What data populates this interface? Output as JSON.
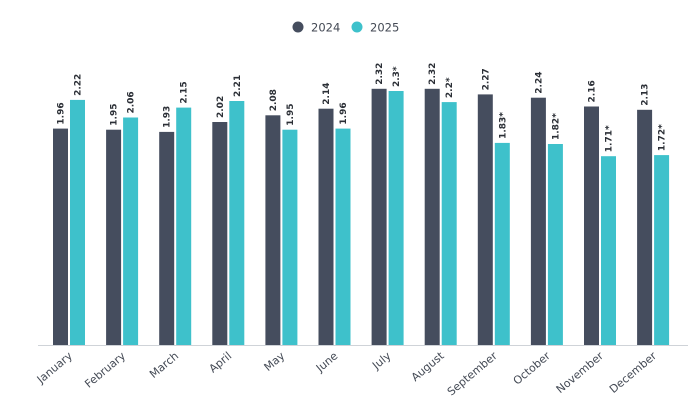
{
  "chart_data": {
    "type": "bar",
    "title": "",
    "xlabel": "",
    "ylabel": "",
    "categories": [
      "January",
      "February",
      "March",
      "April",
      "May",
      "June",
      "July",
      "August",
      "September",
      "October",
      "November",
      "December"
    ],
    "series": [
      {
        "name": "2024",
        "color": "#454d5e",
        "values": [
          1.96,
          1.95,
          1.93,
          2.02,
          2.08,
          2.14,
          2.32,
          2.32,
          2.27,
          2.24,
          2.16,
          2.13
        ],
        "labels": [
          "1.96",
          "1.95",
          "1.93",
          "2.02",
          "2.08",
          "2.14",
          "2.32",
          "2.32",
          "2.27",
          "2.24",
          "2.16",
          "2.13"
        ]
      },
      {
        "name": "2025",
        "color": "#3ec1cb",
        "values": [
          2.22,
          2.06,
          2.15,
          2.21,
          1.95,
          1.96,
          2.3,
          2.2,
          1.83,
          1.82,
          1.71,
          1.72
        ],
        "labels": [
          "2.22",
          "2.06",
          "2.15",
          "2.21",
          "1.95",
          "1.96",
          "2.3*",
          "2.2*",
          "1.83*",
          "1.82*",
          "1.71*",
          "1.72*"
        ]
      }
    ],
    "ylim": [
      0,
      2.4
    ],
    "grid": false,
    "legend_position": "top-center"
  }
}
